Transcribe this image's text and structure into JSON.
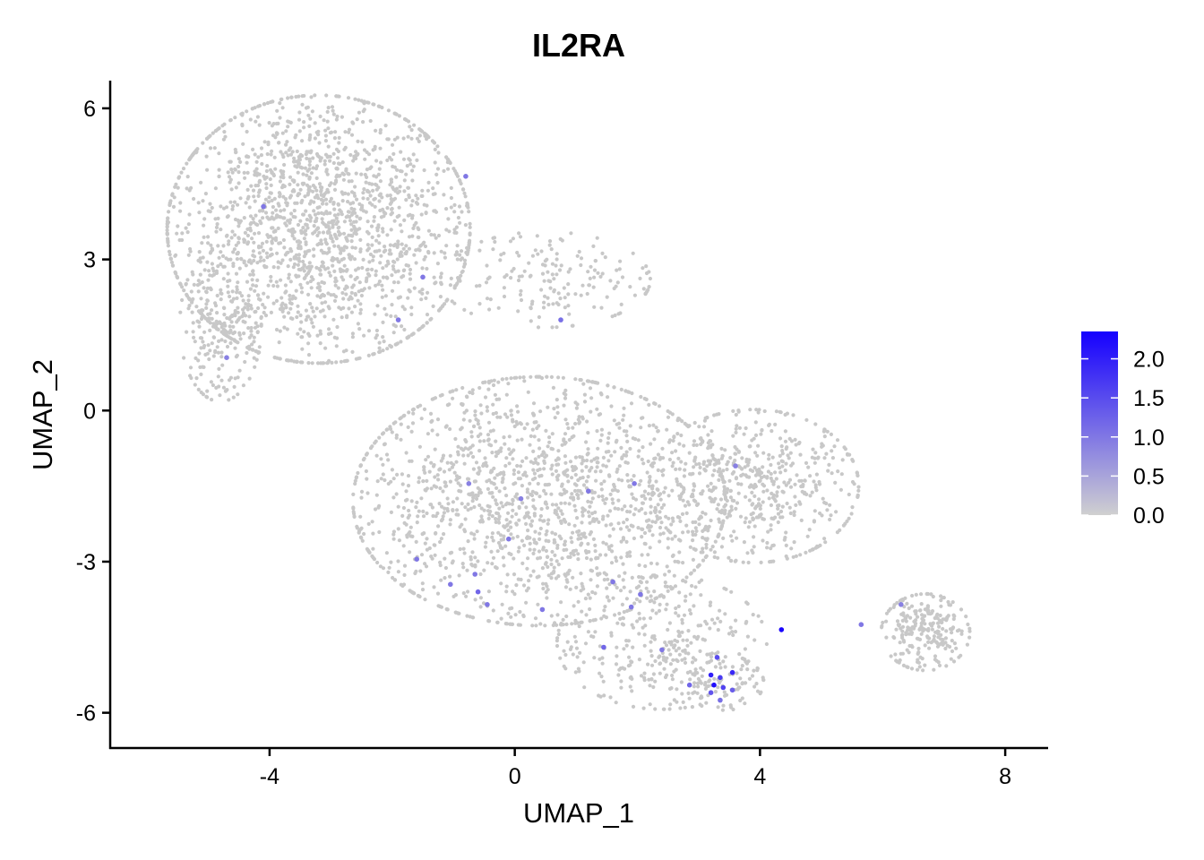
{
  "chart_data": {
    "type": "scatter",
    "title": "IL2RA",
    "xlabel": "UMAP_1",
    "ylabel": "UMAP_2",
    "xlim": [
      -6.6,
      8.7
    ],
    "ylim": [
      -6.7,
      6.55
    ],
    "xticks": [
      -4,
      0,
      4,
      8
    ],
    "yticks": [
      6,
      3,
      0,
      -3,
      -6
    ],
    "xtick_labels": [
      "-4",
      "0",
      "4",
      "8"
    ],
    "ytick_labels": [
      "6",
      "3",
      "0",
      "-3",
      "-6"
    ],
    "grid": false,
    "background_point_color": "#c8c8c8",
    "background_expression": 0.0,
    "color_scale": {
      "low": "#d0d0d0",
      "high": "#1500ff",
      "min": 0.0,
      "max": 2.35
    },
    "legend": {
      "position": "right",
      "ticks": [
        2.0,
        1.5,
        1.0,
        0.5,
        0.0
      ],
      "tick_labels": [
        "2.0",
        "1.5",
        "1.0",
        "0.5",
        "0.0"
      ]
    },
    "clusters": [
      {
        "name": "upper-left cluster",
        "center": [
          -3.2,
          3.6
        ],
        "spread": [
          1.3,
          1.4
        ],
        "count": 1800
      },
      {
        "name": "upper-left left lobe",
        "center": [
          -4.8,
          1.7
        ],
        "spread": [
          0.35,
          0.8
        ],
        "count": 220
      },
      {
        "name": "bridge",
        "center": [
          0.5,
          2.6
        ],
        "spread": [
          0.9,
          0.5
        ],
        "count": 180
      },
      {
        "name": "central cluster",
        "center": [
          0.4,
          -1.8
        ],
        "spread": [
          1.6,
          1.3
        ],
        "count": 1600
      },
      {
        "name": "right arm",
        "center": [
          3.9,
          -1.5
        ],
        "spread": [
          0.9,
          0.8
        ],
        "count": 550
      },
      {
        "name": "lower tail",
        "center": [
          2.4,
          -4.6
        ],
        "spread": [
          0.9,
          0.7
        ],
        "count": 320
      },
      {
        "name": "bottom tip",
        "center": [
          3.3,
          -5.4
        ],
        "spread": [
          0.4,
          0.3
        ],
        "count": 90
      },
      {
        "name": "far-right cluster",
        "center": [
          6.7,
          -4.4
        ],
        "spread": [
          0.38,
          0.4
        ],
        "count": 240
      }
    ],
    "expressing_cells": [
      {
        "x": -4.1,
        "y": 4.05,
        "value": 1.0
      },
      {
        "x": -0.8,
        "y": 4.65,
        "value": 1.0
      },
      {
        "x": -1.5,
        "y": 2.65,
        "value": 1.0
      },
      {
        "x": -1.9,
        "y": 1.8,
        "value": 1.0
      },
      {
        "x": 0.75,
        "y": 1.8,
        "value": 1.1
      },
      {
        "x": -4.7,
        "y": 1.05,
        "value": 0.9
      },
      {
        "x": -0.75,
        "y": -1.45,
        "value": 0.9
      },
      {
        "x": 0.1,
        "y": -1.75,
        "value": 0.9
      },
      {
        "x": 1.2,
        "y": -1.6,
        "value": 1.0
      },
      {
        "x": 1.95,
        "y": -1.45,
        "value": 1.0
      },
      {
        "x": 3.6,
        "y": -1.1,
        "value": 0.9
      },
      {
        "x": -0.1,
        "y": -2.55,
        "value": 1.0
      },
      {
        "x": -1.6,
        "y": -2.95,
        "value": 1.0
      },
      {
        "x": -0.65,
        "y": -3.25,
        "value": 1.0
      },
      {
        "x": -1.05,
        "y": -3.45,
        "value": 1.0
      },
      {
        "x": -0.6,
        "y": -3.6,
        "value": 1.2
      },
      {
        "x": -0.45,
        "y": -3.85,
        "value": 1.0
      },
      {
        "x": 0.45,
        "y": -3.95,
        "value": 1.0
      },
      {
        "x": 1.6,
        "y": -3.4,
        "value": 1.0
      },
      {
        "x": 2.05,
        "y": -3.65,
        "value": 1.0
      },
      {
        "x": 1.9,
        "y": -3.9,
        "value": 1.0
      },
      {
        "x": 1.45,
        "y": -4.7,
        "value": 1.2
      },
      {
        "x": 2.4,
        "y": -4.75,
        "value": 1.0
      },
      {
        "x": 4.35,
        "y": -4.35,
        "value": 2.3
      },
      {
        "x": 5.65,
        "y": -4.25,
        "value": 1.0
      },
      {
        "x": 6.3,
        "y": -3.85,
        "value": 0.9
      },
      {
        "x": 3.3,
        "y": -4.9,
        "value": 1.5
      },
      {
        "x": 3.2,
        "y": -5.25,
        "value": 2.0
      },
      {
        "x": 3.35,
        "y": -5.3,
        "value": 1.7
      },
      {
        "x": 3.55,
        "y": -5.2,
        "value": 1.9
      },
      {
        "x": 2.85,
        "y": -5.45,
        "value": 1.2
      },
      {
        "x": 3.25,
        "y": -5.45,
        "value": 2.2
      },
      {
        "x": 3.4,
        "y": -5.5,
        "value": 1.6
      },
      {
        "x": 3.55,
        "y": -5.55,
        "value": 1.3
      },
      {
        "x": 3.2,
        "y": -5.6,
        "value": 1.4
      },
      {
        "x": 3.35,
        "y": -5.75,
        "value": 1.1
      }
    ]
  }
}
